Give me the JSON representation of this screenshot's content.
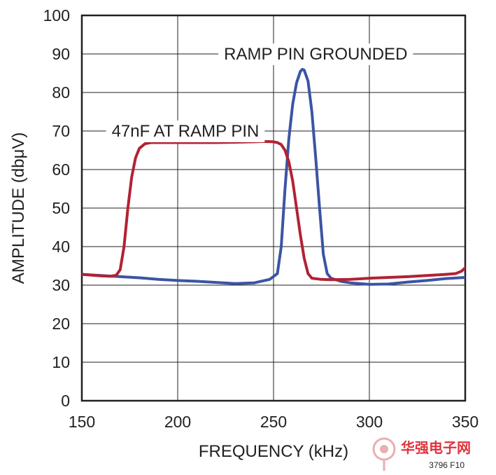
{
  "chart_data": {
    "type": "line",
    "xlabel": "FREQUENCY (kHz)",
    "ylabel": "AMPLITUDE (dbμV)",
    "xlim": [
      150,
      350
    ],
    "ylim": [
      0,
      100
    ],
    "xticks": [
      150,
      200,
      250,
      300,
      350
    ],
    "yticks": [
      0,
      10,
      20,
      30,
      40,
      50,
      60,
      70,
      80,
      90,
      100
    ],
    "grid": true,
    "series": [
      {
        "name": "RAMP PIN GROUNDED",
        "color": "#3a55a4",
        "points": [
          [
            150,
            32.8
          ],
          [
            160,
            32.5
          ],
          [
            170,
            32.2
          ],
          [
            180,
            31.9
          ],
          [
            190,
            31.5
          ],
          [
            200,
            31.2
          ],
          [
            210,
            31.0
          ],
          [
            220,
            30.7
          ],
          [
            230,
            30.4
          ],
          [
            240,
            30.6
          ],
          [
            248,
            31.5
          ],
          [
            252,
            33.0
          ],
          [
            254,
            40.0
          ],
          [
            256,
            55.0
          ],
          [
            258,
            68.0
          ],
          [
            260,
            77.0
          ],
          [
            262,
            82.5
          ],
          [
            264,
            85.5
          ],
          [
            265,
            86.0
          ],
          [
            266,
            85.8
          ],
          [
            268,
            83.0
          ],
          [
            270,
            75.0
          ],
          [
            272,
            63.0
          ],
          [
            274,
            50.0
          ],
          [
            276,
            38.0
          ],
          [
            278,
            33.0
          ],
          [
            280,
            31.8
          ],
          [
            285,
            31.0
          ],
          [
            290,
            30.6
          ],
          [
            300,
            30.2
          ],
          [
            310,
            30.3
          ],
          [
            320,
            30.8
          ],
          [
            330,
            31.2
          ],
          [
            340,
            31.7
          ],
          [
            350,
            32.0
          ]
        ]
      },
      {
        "name": "47nF AT RAMP PIN",
        "color": "#b22234",
        "points": [
          [
            150,
            32.8
          ],
          [
            155,
            32.6
          ],
          [
            160,
            32.4
          ],
          [
            165,
            32.3
          ],
          [
            168,
            32.6
          ],
          [
            170,
            34.0
          ],
          [
            172,
            40.0
          ],
          [
            174,
            50.0
          ],
          [
            176,
            58.0
          ],
          [
            178,
            63.0
          ],
          [
            180,
            65.5
          ],
          [
            183,
            66.7
          ],
          [
            186,
            67.0
          ],
          [
            190,
            67.0
          ],
          [
            200,
            67.0
          ],
          [
            210,
            67.0
          ],
          [
            220,
            67.0
          ],
          [
            230,
            67.1
          ],
          [
            240,
            67.2
          ],
          [
            245,
            67.3
          ],
          [
            250,
            67.2
          ],
          [
            252,
            67.0
          ],
          [
            254,
            66.5
          ],
          [
            256,
            65.0
          ],
          [
            258,
            62.0
          ],
          [
            260,
            57.0
          ],
          [
            262,
            50.0
          ],
          [
            264,
            43.0
          ],
          [
            266,
            37.0
          ],
          [
            268,
            33.0
          ],
          [
            270,
            31.8
          ],
          [
            275,
            31.5
          ],
          [
            280,
            31.4
          ],
          [
            290,
            31.5
          ],
          [
            300,
            31.8
          ],
          [
            310,
            32.0
          ],
          [
            320,
            32.2
          ],
          [
            330,
            32.5
          ],
          [
            340,
            32.8
          ],
          [
            345,
            33.0
          ],
          [
            348,
            33.6
          ],
          [
            350,
            34.5
          ]
        ]
      }
    ],
    "annotations": [
      {
        "text": "RAMP PIN GROUNDED",
        "x": 272,
        "y": 90
      },
      {
        "text": "47nF AT RAMP PIN",
        "x": 204,
        "y": 70
      }
    ]
  },
  "figure_id": "3796 F10",
  "watermark": "华强电子网"
}
